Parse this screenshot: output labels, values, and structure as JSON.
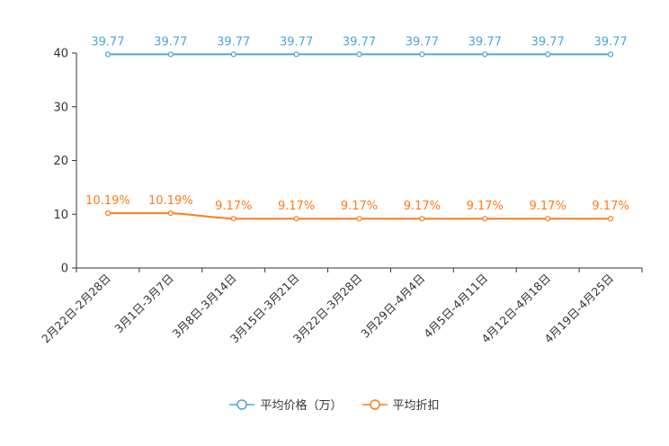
{
  "chart_data": {
    "type": "line",
    "categories": [
      "2月22日-2月28日",
      "3月1日-3月7日",
      "3月8日-3月14日",
      "3月15日-3月21日",
      "3月22日-3月28日",
      "3月29日-4月4日",
      "4月5日-4月11日",
      "4月12日-4月18日",
      "4月19日-4月25日"
    ],
    "series": [
      {
        "name": "平均价格（万）",
        "color": "#4ea6d9",
        "values": [
          39.77,
          39.77,
          39.77,
          39.77,
          39.77,
          39.77,
          39.77,
          39.77,
          39.77
        ],
        "labels": [
          "39.77",
          "39.77",
          "39.77",
          "39.77",
          "39.77",
          "39.77",
          "39.77",
          "39.77",
          "39.77"
        ]
      },
      {
        "name": "平均折扣",
        "color": "#ff7a1a",
        "values": [
          10.19,
          10.19,
          9.17,
          9.17,
          9.17,
          9.17,
          9.17,
          9.17,
          9.17
        ],
        "labels": [
          "10.19%",
          "10.19%",
          "9.17%",
          "9.17%",
          "9.17%",
          "9.17%",
          "9.17%",
          "9.17%",
          "9.17%"
        ]
      }
    ],
    "yticks": [
      "0",
      "10",
      "20",
      "30",
      "40"
    ],
    "ylim": [
      0,
      40
    ],
    "legend_position": "bottom-center",
    "grid": false
  }
}
